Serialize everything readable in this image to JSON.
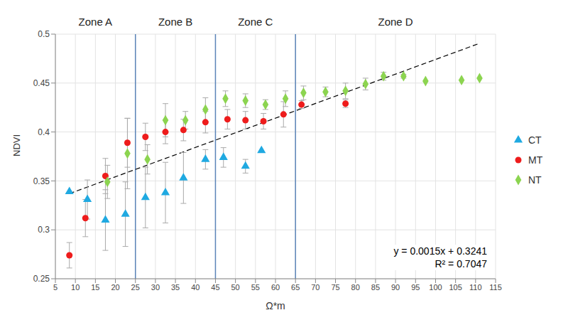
{
  "chart_data": {
    "type": "scatter",
    "x_label": "Ω*m",
    "y_label": "NDVI",
    "xlim": [
      5,
      115
    ],
    "xticks": [
      5,
      10,
      15,
      20,
      25,
      30,
      35,
      40,
      45,
      50,
      55,
      60,
      65,
      70,
      75,
      80,
      85,
      90,
      95,
      100,
      105,
      110,
      115
    ],
    "ylim": [
      0.25,
      0.5
    ],
    "yticks": [
      0.25,
      0.3,
      0.35,
      0.4,
      0.45,
      0.5
    ],
    "grid": true,
    "legend": "right",
    "zone_boundaries": [
      25,
      45,
      65
    ],
    "zones": [
      {
        "label": "Zone A",
        "from": 5,
        "to": 25
      },
      {
        "label": "Zone B",
        "from": 25,
        "to": 45
      },
      {
        "label": "Zone C",
        "from": 45,
        "to": 65
      },
      {
        "label": "Zone D",
        "from": 65,
        "to": 115
      }
    ],
    "series": [
      {
        "name": "CT",
        "color": "#1fa9e1",
        "marker": "triangle",
        "x": [
          8.5,
          13,
          17.5,
          22.5,
          27.5,
          32.5,
          37,
          42.5,
          47,
          52.5,
          56.5
        ],
        "values": [
          0.339,
          0.331,
          0.31,
          0.316,
          0.333,
          0.338,
          0.353,
          0.372,
          0.374,
          0.365,
          0.381
        ],
        "errors": [
          0,
          0.02,
          0.031,
          0.033,
          0.031,
          0.031,
          0.026,
          0.01,
          0.01,
          0.007,
          0
        ]
      },
      {
        "name": "MT",
        "color": "#ee1c1c",
        "marker": "circle",
        "x": [
          8.5,
          12.5,
          17.5,
          23,
          27.5,
          32.5,
          37,
          42.5,
          48,
          52.5,
          57,
          62,
          66.5,
          77.5
        ],
        "values": [
          0.274,
          0.312,
          0.355,
          0.389,
          0.395,
          0.4,
          0.402,
          0.41,
          0.413,
          0.412,
          0.411,
          0.418,
          0.428,
          0.429
        ],
        "errors": [
          0.013,
          0.019,
          0.018,
          0.025,
          0.014,
          0.012,
          0.011,
          0.011,
          0.01,
          0.009,
          0.008,
          0.013,
          0.004,
          0.004
        ]
      },
      {
        "name": "NT",
        "color": "#8cd450",
        "marker": "diamond",
        "x": [
          18,
          23,
          28,
          32.5,
          37.5,
          42.5,
          47.5,
          52.5,
          57.5,
          62.5,
          67,
          72.5,
          77.5,
          82.5,
          87,
          92,
          97.5,
          106.5,
          111
        ],
        "values": [
          0.349,
          0.378,
          0.372,
          0.412,
          0.412,
          0.423,
          0.434,
          0.432,
          0.428,
          0.434,
          0.44,
          0.441,
          0.442,
          0.449,
          0.457,
          0.457,
          0.452,
          0.453,
          0.455
        ],
        "errors": [
          0.017,
          0.036,
          0.015,
          0.017,
          0.009,
          0.012,
          0.008,
          0.007,
          0.005,
          0.008,
          0.007,
          0.005,
          0.008,
          0.006,
          0.004,
          0.002,
          0,
          0,
          0
        ]
      }
    ],
    "trendline": {
      "x": [
        8.5,
        111
      ],
      "values": [
        0.337,
        0.4906
      ],
      "color": "#000000",
      "line_style": "dashed"
    },
    "annotations": [
      "y = 0.0015x + 0.3241",
      "R² = 0.7047"
    ]
  }
}
